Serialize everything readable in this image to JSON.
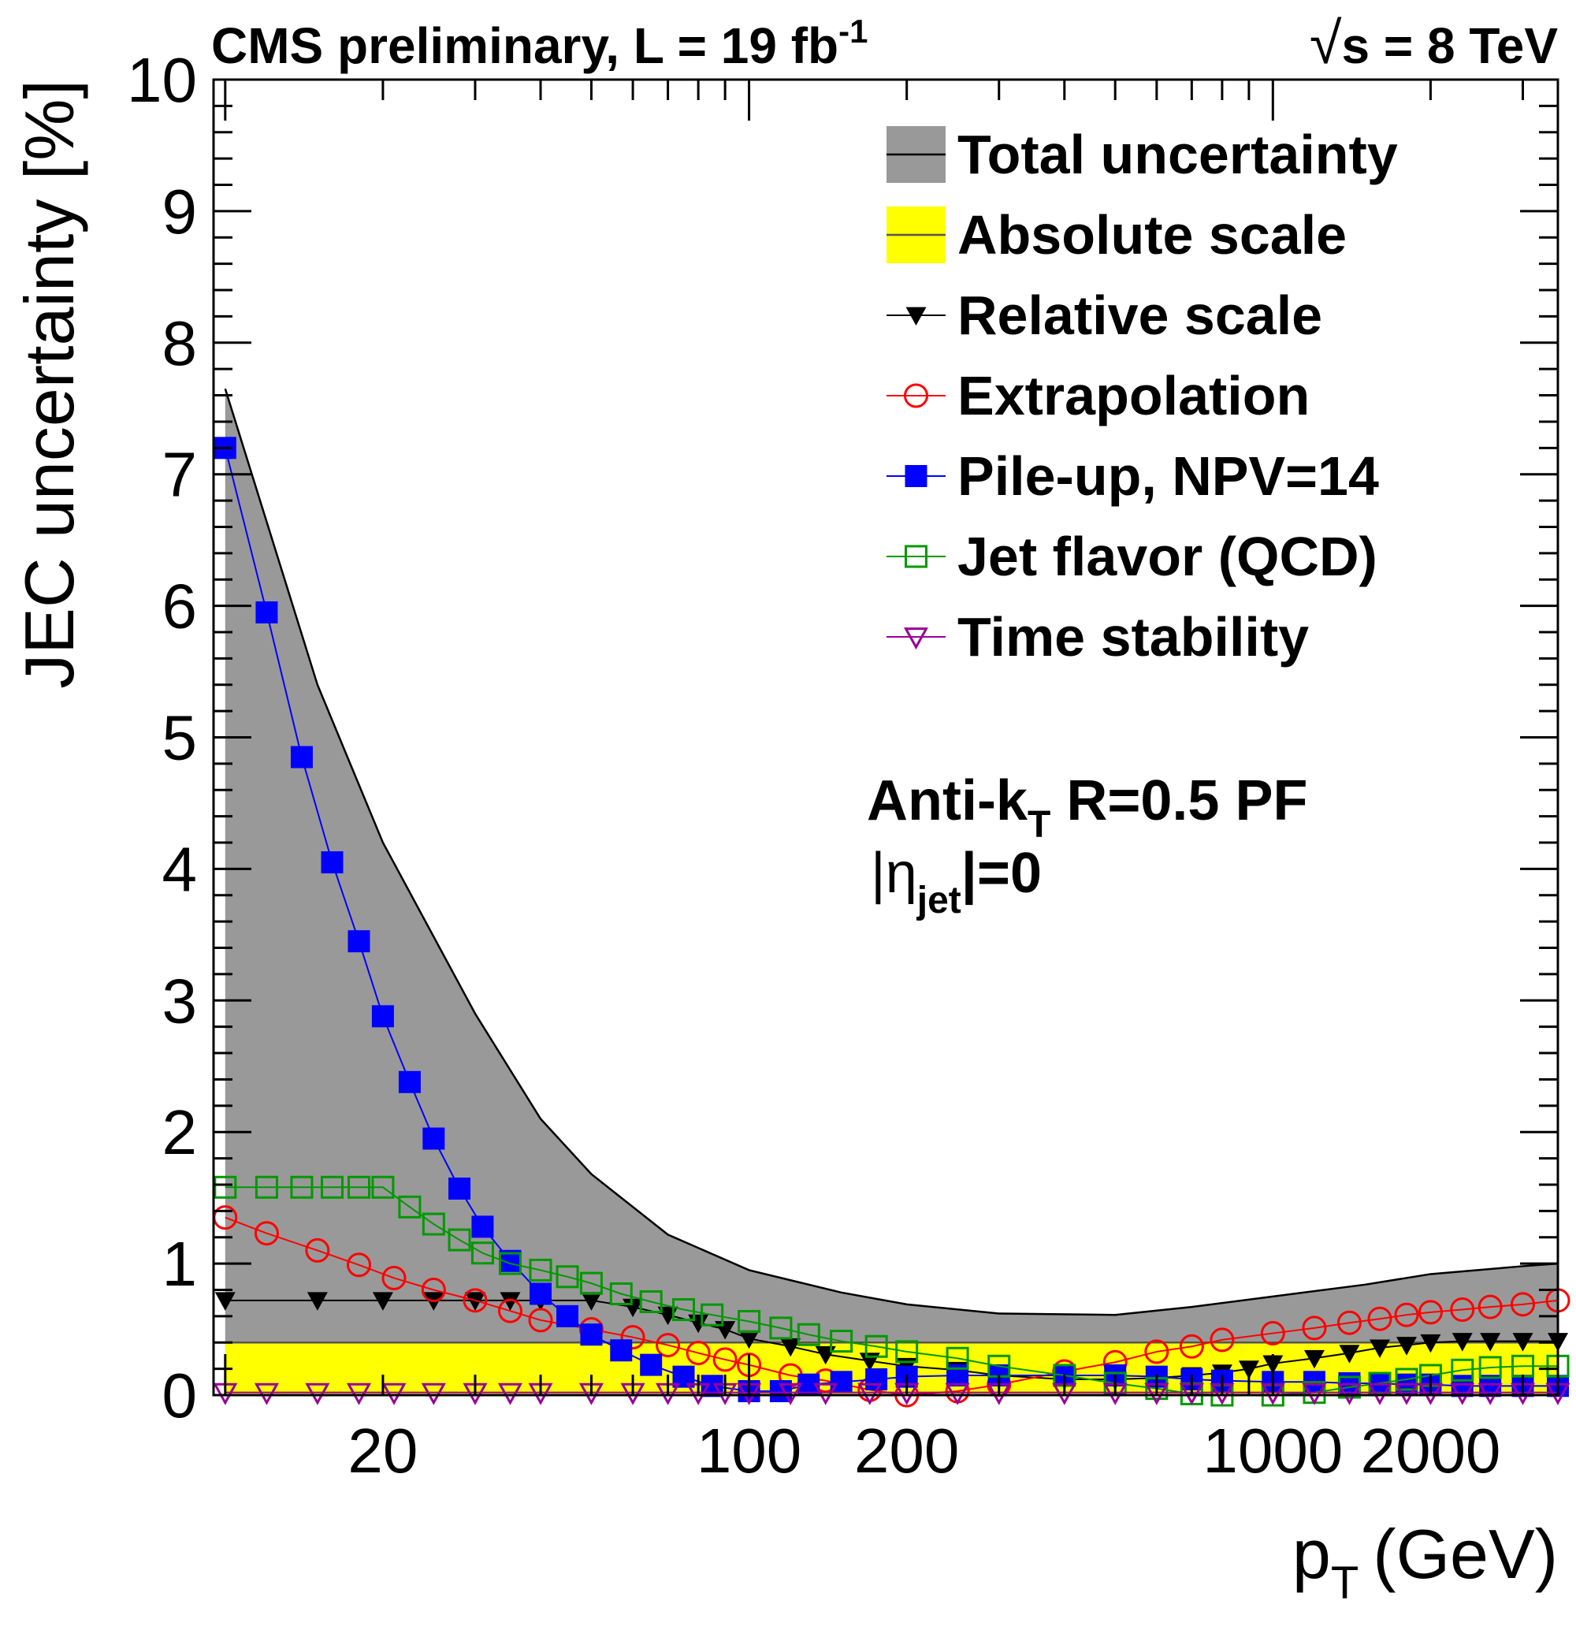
{
  "header": {
    "left_main": "CMS preliminary, L = 19 fb",
    "left_sup": "-1",
    "right_sqrt": "√",
    "right_main": "s = 8 TeV"
  },
  "labels": {
    "jet_line1": "Anti-k",
    "jet_line1_sub": "T",
    "jet_line1_rest": " R=0.5 PF",
    "jet_line2_bar": "|",
    "jet_line2_eta": "η",
    "jet_line2_sub": "jet",
    "jet_line2_rest": "|=0"
  },
  "chart_data": {
    "type": "line",
    "xlabel": "p",
    "xlabel_sub": "T",
    "xlabel_unit": "(GeV)",
    "ylabel": "JEC uncertainty [%]",
    "xscale": "log",
    "xlim": [
      9.5,
      3500
    ],
    "ylim": [
      0,
      10
    ],
    "x_tick_labels": [
      {
        "value": 20,
        "label": "20"
      },
      {
        "value": 100,
        "label": "100"
      },
      {
        "value": 200,
        "label": "200"
      },
      {
        "value": 1000,
        "label": "1000"
      },
      {
        "value": 2000,
        "label": "2000"
      }
    ],
    "y_tick_labels": [
      "0",
      "1",
      "2",
      "3",
      "4",
      "5",
      "6",
      "7",
      "8",
      "9",
      "10"
    ],
    "legend_position": "top-right",
    "series": [
      {
        "name": "Total uncertainty",
        "style": "band",
        "color": "#999999",
        "line_color": "#000000",
        "x": [
          10,
          15,
          20,
          30,
          40,
          50,
          70,
          100,
          150,
          200,
          300,
          500,
          700,
          1000,
          1500,
          2000,
          3000,
          3500
        ],
        "values": [
          7.65,
          5.4,
          4.2,
          2.9,
          2.1,
          1.68,
          1.22,
          0.95,
          0.78,
          0.69,
          0.62,
          0.61,
          0.67,
          0.75,
          0.84,
          0.92,
          0.98,
          1.0
        ]
      },
      {
        "name": "Absolute scale",
        "style": "band",
        "color": "#ffff00",
        "line_color": "#555555",
        "x": [
          10,
          3500
        ],
        "values": [
          0.4,
          0.4
        ]
      },
      {
        "name": "Relative scale",
        "style": "markers",
        "marker": "triangle-down-filled",
        "color": "#000000",
        "x": [
          10,
          15,
          20,
          25,
          30,
          35,
          40,
          50,
          60,
          70,
          80,
          90,
          100,
          120,
          140,
          170,
          200,
          250,
          300,
          400,
          500,
          600,
          700,
          800,
          900,
          1000,
          1200,
          1400,
          1600,
          1800,
          2000,
          2300,
          2600,
          3000,
          3500
        ],
        "values": [
          0.72,
          0.72,
          0.72,
          0.72,
          0.72,
          0.72,
          0.72,
          0.72,
          0.67,
          0.61,
          0.55,
          0.5,
          0.43,
          0.37,
          0.31,
          0.26,
          0.22,
          0.19,
          0.15,
          0.12,
          0.12,
          0.13,
          0.15,
          0.17,
          0.2,
          0.24,
          0.28,
          0.32,
          0.36,
          0.38,
          0.4,
          0.41,
          0.41,
          0.41,
          0.41
        ]
      },
      {
        "name": "Extrapolation",
        "style": "markers",
        "marker": "circle-open",
        "color": "#ff0000",
        "x": [
          10,
          12,
          15,
          18,
          21,
          25,
          30,
          35,
          40,
          50,
          60,
          70,
          80,
          90,
          100,
          120,
          140,
          170,
          200,
          250,
          300,
          400,
          500,
          600,
          700,
          800,
          1000,
          1200,
          1400,
          1600,
          1800,
          2000,
          2300,
          2600,
          3000,
          3500
        ],
        "values": [
          1.35,
          1.23,
          1.1,
          0.99,
          0.89,
          0.8,
          0.72,
          0.64,
          0.57,
          0.5,
          0.44,
          0.38,
          0.32,
          0.27,
          0.23,
          0.15,
          0.11,
          0.04,
          0.0,
          0.03,
          0.08,
          0.18,
          0.25,
          0.33,
          0.37,
          0.42,
          0.47,
          0.51,
          0.55,
          0.58,
          0.61,
          0.63,
          0.65,
          0.67,
          0.69,
          0.72
        ]
      },
      {
        "name": "Pile-up, NPV=14",
        "style": "markers",
        "marker": "square-filled",
        "color": "#0000ff",
        "x": [
          10,
          12,
          14,
          16,
          18,
          20,
          22.5,
          25,
          28,
          31,
          35,
          40,
          45,
          50,
          57,
          65,
          75,
          85,
          100,
          115,
          130,
          150,
          175,
          200,
          250,
          300,
          400,
          500,
          600,
          700,
          800,
          1000,
          1200,
          1400,
          1600,
          1800,
          2000,
          2300,
          2600,
          3000,
          3500
        ],
        "values": [
          7.2,
          5.95,
          4.85,
          4.05,
          3.45,
          2.88,
          2.38,
          1.95,
          1.57,
          1.28,
          1.02,
          0.77,
          0.6,
          0.46,
          0.34,
          0.23,
          0.14,
          0.07,
          0.03,
          0.03,
          0.08,
          0.1,
          0.12,
          0.14,
          0.15,
          0.15,
          0.15,
          0.15,
          0.14,
          0.12,
          0.11,
          0.1,
          0.1,
          0.09,
          0.09,
          0.08,
          0.08,
          0.07,
          0.07,
          0.07,
          0.07
        ]
      },
      {
        "name": "Jet flavor (QCD)",
        "style": "markers",
        "marker": "square-open",
        "color": "#009900",
        "x": [
          10,
          12,
          14,
          16,
          18,
          20,
          22.5,
          25,
          28,
          31,
          35,
          40,
          45,
          50,
          57,
          65,
          75,
          85,
          100,
          115,
          130,
          150,
          175,
          200,
          250,
          300,
          400,
          500,
          600,
          700,
          800,
          1000,
          1200,
          1400,
          1600,
          1800,
          2000,
          2300,
          2600,
          3000,
          3500
        ],
        "values": [
          1.58,
          1.58,
          1.58,
          1.58,
          1.58,
          1.58,
          1.43,
          1.3,
          1.18,
          1.08,
          1.0,
          0.95,
          0.9,
          0.85,
          0.77,
          0.71,
          0.65,
          0.61,
          0.56,
          0.51,
          0.46,
          0.41,
          0.37,
          0.33,
          0.28,
          0.22,
          0.15,
          0.09,
          0.05,
          0.01,
          0.0,
          0.0,
          0.02,
          0.06,
          0.09,
          0.12,
          0.15,
          0.19,
          0.21,
          0.22,
          0.22
        ]
      },
      {
        "name": "Time stability",
        "style": "markers",
        "marker": "triangle-down-open",
        "color": "#990099",
        "x": [
          10,
          12,
          15,
          18,
          21,
          25,
          30,
          35,
          40,
          50,
          60,
          70,
          80,
          90,
          100,
          120,
          140,
          170,
          200,
          250,
          300,
          400,
          500,
          600,
          700,
          800,
          1000,
          1200,
          1400,
          1600,
          1800,
          2000,
          2300,
          2600,
          3000,
          3500
        ],
        "values": [
          0.02,
          0.02,
          0.02,
          0.02,
          0.02,
          0.02,
          0.02,
          0.02,
          0.02,
          0.02,
          0.02,
          0.02,
          0.02,
          0.02,
          0.02,
          0.02,
          0.02,
          0.02,
          0.02,
          0.02,
          0.02,
          0.02,
          0.02,
          0.02,
          0.02,
          0.02,
          0.02,
          0.02,
          0.02,
          0.02,
          0.02,
          0.02,
          0.02,
          0.02,
          0.02,
          0.02
        ]
      }
    ]
  }
}
